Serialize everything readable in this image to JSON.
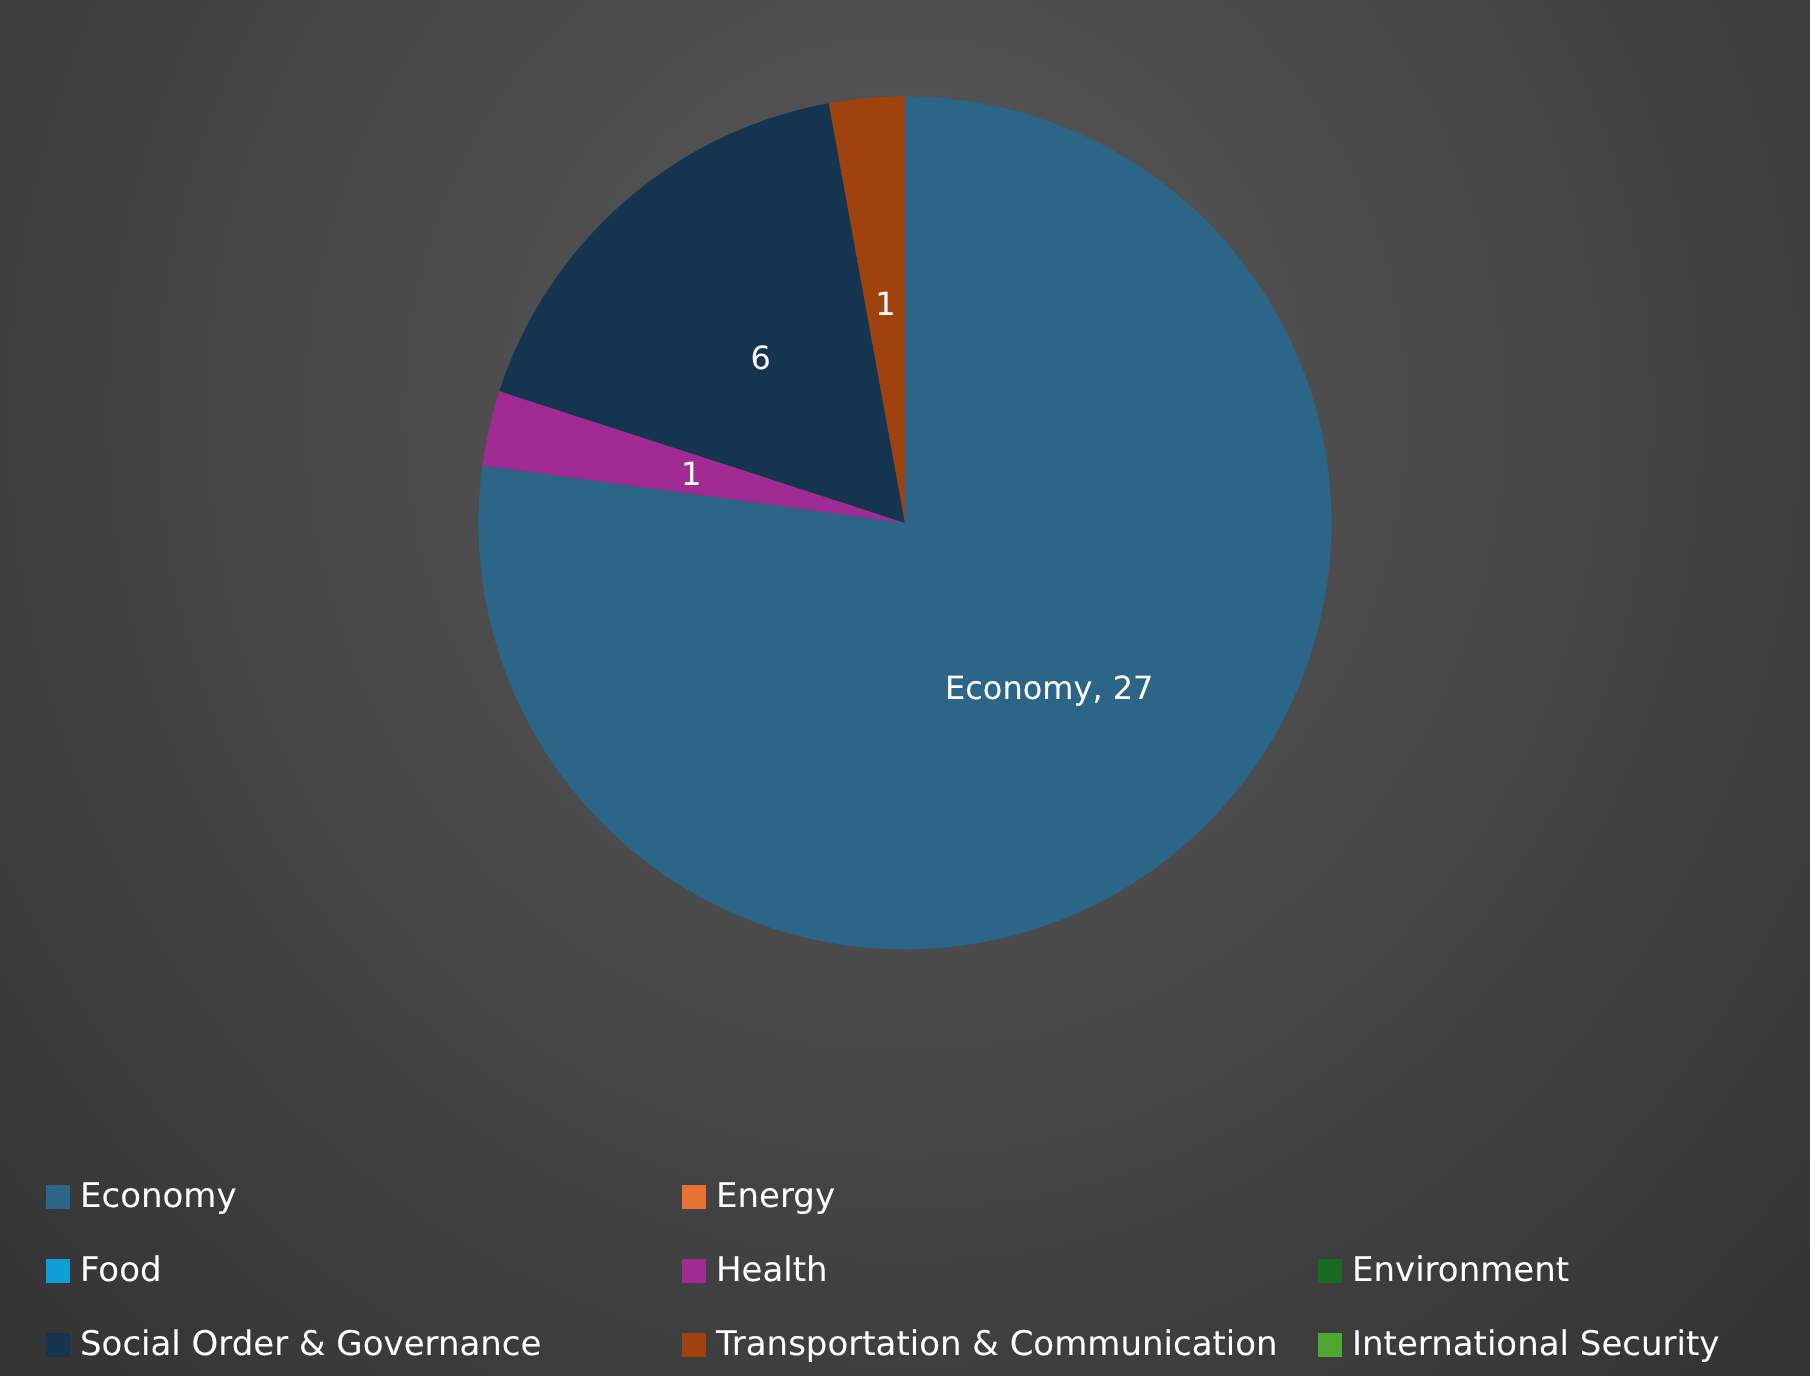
{
  "chart_data": {
    "type": "pie",
    "categories": [
      "Economy",
      "Energy",
      "Environment",
      "Food",
      "Health",
      "International Security",
      "Social Order & Governance",
      "Transportation & Communication"
    ],
    "values": [
      27,
      0,
      0,
      0,
      1,
      0,
      6,
      1
    ],
    "colors": [
      "#2b6689",
      "#e97132",
      "#196b24",
      "#0f9ed5",
      "#a02b93",
      "#4ea72e",
      "#14344f",
      "#a0420e"
    ],
    "value_labels": [
      "Economy, 27",
      null,
      null,
      null,
      "1",
      null,
      "6",
      "1"
    ],
    "legend": "bottom"
  }
}
